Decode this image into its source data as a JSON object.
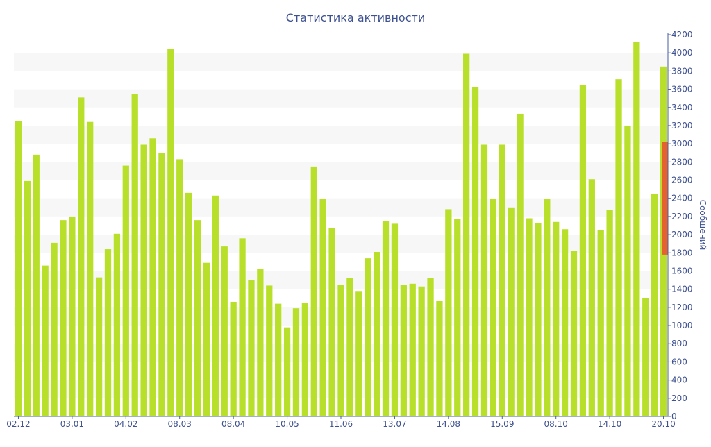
{
  "chart_data": {
    "type": "bar",
    "title": "Статистика активности",
    "xlabel": "",
    "ylabel": "Сообщений",
    "ylim": [
      0,
      4200
    ],
    "yticks": [
      0,
      200,
      400,
      600,
      800,
      1000,
      1200,
      1400,
      1600,
      1800,
      2000,
      2200,
      2400,
      2600,
      2800,
      3000,
      3200,
      3400,
      3600,
      3800,
      4000,
      4200
    ],
    "grid": "alternating horizontal bands",
    "y_axis_side": "right",
    "colors": {
      "bar": "#b8e02a",
      "highlight": "#e5622f",
      "text": "#3e5190"
    },
    "x_tick_labels": [
      {
        "index": 0,
        "label": "02.12"
      },
      {
        "index": 6,
        "label": "03.01"
      },
      {
        "index": 12,
        "label": "04.02"
      },
      {
        "index": 18,
        "label": "08.03"
      },
      {
        "index": 24,
        "label": "08.04"
      },
      {
        "index": 30,
        "label": "10.05"
      },
      {
        "index": 36,
        "label": "11.06"
      },
      {
        "index": 42,
        "label": "13.07"
      },
      {
        "index": 48,
        "label": "14.08"
      },
      {
        "index": 54,
        "label": "15.09"
      },
      {
        "index": 60,
        "label": "08.10"
      },
      {
        "index": 66,
        "label": "14.10"
      },
      {
        "index": 72,
        "label": "20.10"
      }
    ],
    "values": [
      3250,
      2590,
      2880,
      1660,
      1910,
      2160,
      2200,
      3510,
      3240,
      1530,
      1840,
      2010,
      2760,
      3550,
      2990,
      3060,
      2900,
      4040,
      2830,
      2460,
      2160,
      1690,
      2430,
      1870,
      1260,
      1960,
      1500,
      1620,
      1440,
      1240,
      980,
      1190,
      1250,
      2750,
      2390,
      2070,
      1450,
      1520,
      1380,
      1740,
      1810,
      2150,
      2120,
      1450,
      1460,
      1430,
      1520,
      1270,
      2280,
      2170,
      3990,
      3620,
      2990,
      2390,
      2990,
      2300,
      3330,
      2180,
      2130,
      2390,
      2140,
      2060,
      1820,
      3650,
      2610,
      2050,
      2270,
      3710,
      3200,
      4120,
      1300,
      2450,
      3850
    ],
    "highlight": {
      "low": 1780,
      "high": 3020
    }
  }
}
